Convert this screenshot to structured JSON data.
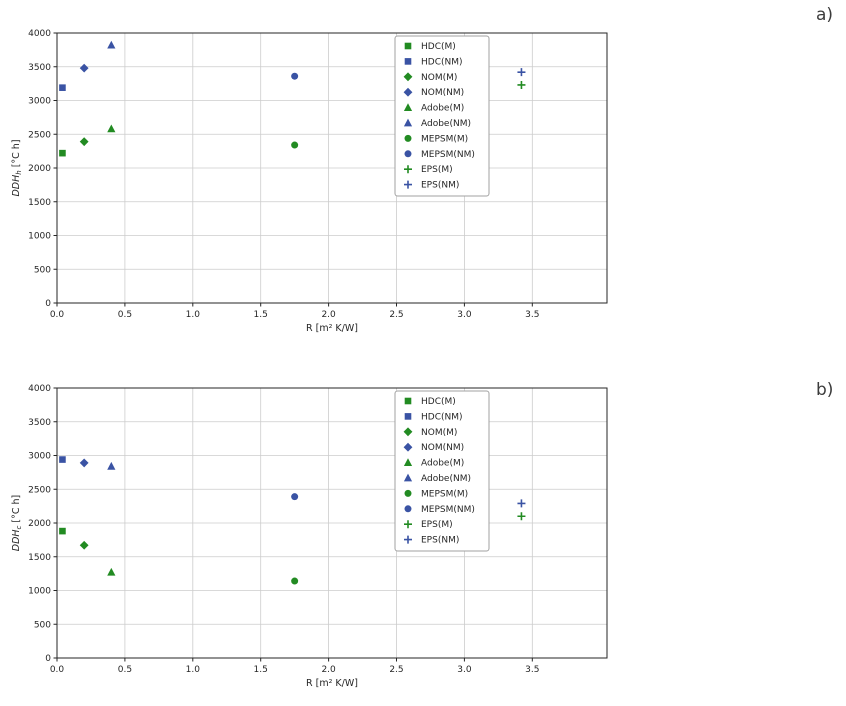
{
  "page": {
    "background": "#ffffff"
  },
  "style": {
    "grid_color": "#cccccc",
    "axis_color": "#262626",
    "legend_border": "#a0a0a0",
    "measured_color": "#228b22",
    "not_measured_color": "#3a53a4"
  },
  "chart_data": [
    {
      "type": "scatter",
      "panel_label": "a)",
      "ylabel_main": "DDH",
      "ylabel_sub": "h",
      "ylabel_unit": "[°C h]",
      "xlabel": "R [m² K/W]",
      "xlim": [
        0,
        4.05
      ],
      "ylim": [
        0,
        4000
      ],
      "xticks": [
        0,
        0.5,
        1.0,
        1.5,
        2.0,
        2.5,
        3.0,
        3.5
      ],
      "xtick_labels": [
        "0.0",
        "0.5",
        "1.0",
        "1.5",
        "2.0",
        "2.5",
        "3.0",
        "3.5"
      ],
      "yticks": [
        0,
        500,
        1000,
        1500,
        2000,
        2500,
        3000,
        3500,
        4000
      ],
      "ytick_labels": [
        "0",
        "500",
        "1000",
        "1500",
        "2000",
        "2500",
        "3000",
        "3500",
        "4000"
      ],
      "grid": true,
      "legend_pos": "upper center-right inside",
      "series": [
        {
          "name": "HDC(M)",
          "marker": "square",
          "color": "#228b22",
          "points": [
            [
              0.04,
              2220
            ]
          ]
        },
        {
          "name": "HDC(NM)",
          "marker": "square",
          "color": "#3a53a4",
          "points": [
            [
              0.04,
              3190
            ]
          ]
        },
        {
          "name": "NOM(M)",
          "marker": "diamond",
          "color": "#228b22",
          "points": [
            [
              0.2,
              2390
            ]
          ]
        },
        {
          "name": "NOM(NM)",
          "marker": "diamond",
          "color": "#3a53a4",
          "points": [
            [
              0.2,
              3480
            ]
          ]
        },
        {
          "name": "Adobe(M)",
          "marker": "triangle",
          "color": "#228b22",
          "points": [
            [
              0.4,
              2580
            ]
          ]
        },
        {
          "name": "Adobe(NM)",
          "marker": "triangle",
          "color": "#3a53a4",
          "points": [
            [
              0.4,
              3820
            ]
          ]
        },
        {
          "name": "MEPSM(M)",
          "marker": "circle",
          "color": "#228b22",
          "points": [
            [
              1.75,
              2340
            ]
          ]
        },
        {
          "name": "MEPSM(NM)",
          "marker": "circle",
          "color": "#3a53a4",
          "points": [
            [
              1.75,
              3360
            ]
          ]
        },
        {
          "name": "EPS(M)",
          "marker": "plus",
          "color": "#228b22",
          "points": [
            [
              3.42,
              3230
            ]
          ]
        },
        {
          "name": "EPS(NM)",
          "marker": "plus",
          "color": "#3a53a4",
          "points": [
            [
              3.42,
              3420
            ]
          ]
        }
      ]
    },
    {
      "type": "scatter",
      "panel_label": "b)",
      "ylabel_main": "DDH",
      "ylabel_sub": "c",
      "ylabel_unit": "[°C h]",
      "xlabel": "R [m² K/W]",
      "xlim": [
        0,
        4.05
      ],
      "ylim": [
        0,
        4000
      ],
      "xticks": [
        0,
        0.5,
        1.0,
        1.5,
        2.0,
        2.5,
        3.0,
        3.5
      ],
      "xtick_labels": [
        "0.0",
        "0.5",
        "1.0",
        "1.5",
        "2.0",
        "2.5",
        "3.0",
        "3.5"
      ],
      "yticks": [
        0,
        500,
        1000,
        1500,
        2000,
        2500,
        3000,
        3500,
        4000
      ],
      "ytick_labels": [
        "0",
        "500",
        "1000",
        "1500",
        "2000",
        "2500",
        "3000",
        "3500",
        "4000"
      ],
      "grid": true,
      "legend_pos": "upper center-right inside",
      "series": [
        {
          "name": "HDC(M)",
          "marker": "square",
          "color": "#228b22",
          "points": [
            [
              0.04,
              1880
            ]
          ]
        },
        {
          "name": "HDC(NM)",
          "marker": "square",
          "color": "#3a53a4",
          "points": [
            [
              0.04,
              2940
            ]
          ]
        },
        {
          "name": "NOM(M)",
          "marker": "diamond",
          "color": "#228b22",
          "points": [
            [
              0.2,
              1670
            ]
          ]
        },
        {
          "name": "NOM(NM)",
          "marker": "diamond",
          "color": "#3a53a4",
          "points": [
            [
              0.2,
              2890
            ]
          ]
        },
        {
          "name": "Adobe(M)",
          "marker": "triangle",
          "color": "#228b22",
          "points": [
            [
              0.4,
              1270
            ]
          ]
        },
        {
          "name": "Adobe(NM)",
          "marker": "triangle",
          "color": "#3a53a4",
          "points": [
            [
              0.4,
              2840
            ]
          ]
        },
        {
          "name": "MEPSM(M)",
          "marker": "circle",
          "color": "#228b22",
          "points": [
            [
              1.75,
              1140
            ]
          ]
        },
        {
          "name": "MEPSM(NM)",
          "marker": "circle",
          "color": "#3a53a4",
          "points": [
            [
              1.75,
              2390
            ]
          ]
        },
        {
          "name": "EPS(M)",
          "marker": "plus",
          "color": "#228b22",
          "points": [
            [
              3.42,
              2100
            ]
          ]
        },
        {
          "name": "EPS(NM)",
          "marker": "plus",
          "color": "#3a53a4",
          "points": [
            [
              3.42,
              2290
            ]
          ]
        }
      ]
    }
  ]
}
